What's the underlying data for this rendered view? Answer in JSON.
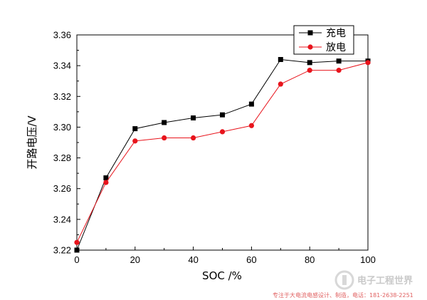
{
  "chart_data": {
    "type": "line",
    "xlabel": "SOC /%",
    "ylabel": "开路电压/V",
    "xlim": [
      0,
      100
    ],
    "ylim": [
      3.22,
      3.36
    ],
    "x_ticks": [
      "0",
      "20",
      "40",
      "60",
      "80",
      "100"
    ],
    "y_ticks": [
      "3.22",
      "3.24",
      "3.26",
      "3.28",
      "3.30",
      "3.32",
      "3.34",
      "3.36"
    ],
    "grid": false,
    "legend_position": "top-right",
    "series": [
      {
        "name": "充电",
        "color": "#000000",
        "marker": "square",
        "x": [
          0,
          10,
          20,
          30,
          40,
          50,
          60,
          70,
          80,
          90,
          100
        ],
        "y": [
          3.22,
          3.267,
          3.299,
          3.303,
          3.306,
          3.308,
          3.315,
          3.344,
          3.342,
          3.343,
          3.343
        ]
      },
      {
        "name": "放电",
        "color": "#e8141c",
        "marker": "circle",
        "x": [
          0,
          10,
          20,
          30,
          40,
          50,
          60,
          70,
          80,
          90,
          100
        ],
        "y": [
          3.225,
          3.264,
          3.291,
          3.293,
          3.293,
          3.297,
          3.301,
          3.328,
          3.337,
          3.337,
          3.342
        ]
      }
    ]
  },
  "watermark": {
    "logo_text": "电子工程世界",
    "caption": "专注于大电流电感设计、制造，电话：181-2638-2251"
  }
}
